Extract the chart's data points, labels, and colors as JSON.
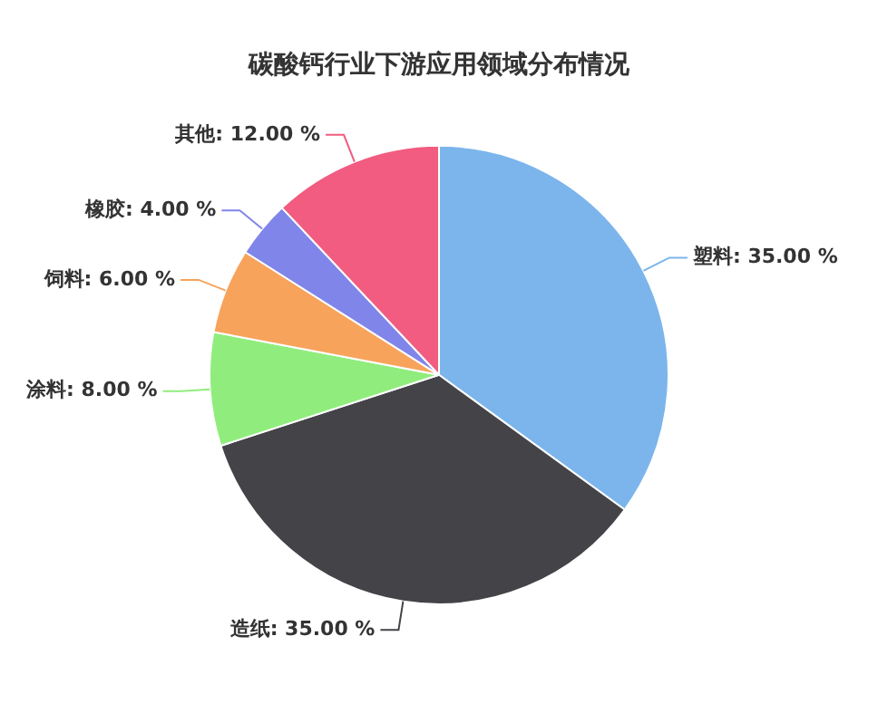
{
  "chart_data": {
    "type": "pie",
    "title": "碳酸钙行业下游应用领域分布情况",
    "categories": [
      "塑料",
      "造纸",
      "涂料",
      "饲料",
      "橡胶",
      "其他"
    ],
    "values": [
      35,
      35,
      8,
      6,
      4,
      12
    ],
    "value_labels": [
      "35.00 %",
      "35.00 %",
      "8.00 %",
      "6.00 %",
      "4.00 %",
      "12.00 %"
    ],
    "colors": [
      "#7cb5ec",
      "#434348",
      "#90ed7d",
      "#f7a35c",
      "#8085e9",
      "#f15c80"
    ],
    "legend": false
  }
}
